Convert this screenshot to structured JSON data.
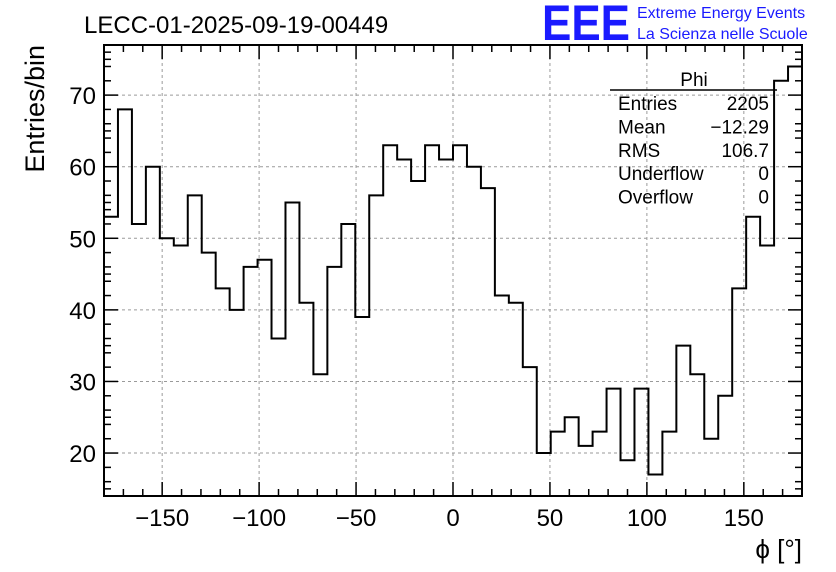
{
  "chart_data": {
    "type": "bar",
    "style": "step-histogram",
    "title": "LECC-01-2025-09-19-00449",
    "xlabel": "ϕ [°]",
    "ylabel": "Entries/bin",
    "xlim": [
      -180,
      180
    ],
    "ylim": [
      14,
      77
    ],
    "bin_width": 7.2,
    "x_ticks": [
      -150,
      -100,
      -50,
      0,
      50,
      100,
      150
    ],
    "x_tick_labels": [
      "−150",
      "−100",
      "−50",
      "0",
      "50",
      "100",
      "150"
    ],
    "y_ticks": [
      20,
      30,
      40,
      50,
      60,
      70
    ],
    "grid": true,
    "values": [
      53,
      68,
      52,
      60,
      50,
      49,
      56,
      48,
      43,
      40,
      46,
      47,
      36,
      55,
      41,
      31,
      46,
      52,
      39,
      56,
      63,
      61,
      58,
      63,
      61,
      63,
      60,
      57,
      42,
      41,
      32,
      20,
      23,
      25,
      21,
      23,
      29,
      19,
      29,
      17,
      23,
      35,
      31,
      22,
      28,
      43,
      53,
      49,
      72,
      74
    ],
    "stats_box": {
      "title": "Phi",
      "rows": [
        {
          "label": "Entries",
          "value": "2205"
        },
        {
          "label": "Mean",
          "value": "−12.29"
        },
        {
          "label": "RMS",
          "value": "106.7"
        },
        {
          "label": "Underflow",
          "value": "0"
        },
        {
          "label": "Overflow",
          "value": "0"
        }
      ]
    }
  },
  "logo": {
    "mark": "EEE",
    "line1": "Extreme Energy Events",
    "line2": "La Scienza nelle Scuole",
    "color": "#1a1aff"
  },
  "colors": {
    "line": "#000000",
    "grid": "#9a9a9a"
  }
}
